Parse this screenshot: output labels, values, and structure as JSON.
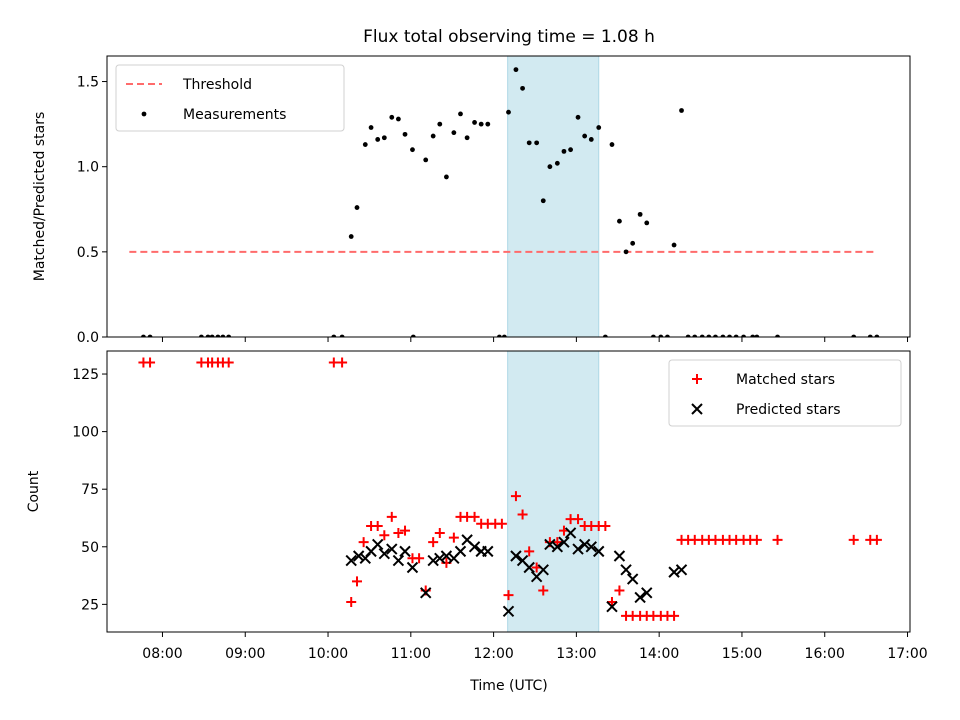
{
  "chart_data": {
    "type": "scatter",
    "title": "Flux total observing time = 1.08 h",
    "xlabel": "Time (UTC)",
    "x_ticks": [
      "08:00",
      "09:00",
      "10:00",
      "11:00",
      "12:00",
      "13:00",
      "14:00",
      "15:00",
      "16:00",
      "17:00"
    ],
    "xlim_hours": [
      7.33,
      17.03
    ],
    "shaded_interval_hours": [
      12.17,
      13.27
    ],
    "shade_color": "#add8e6",
    "panels": [
      {
        "ylabel": "Matched/Predicted stars",
        "ylim": [
          0,
          1.65
        ],
        "y_ticks": [
          0.0,
          0.5,
          1.0,
          1.5
        ],
        "y_tick_labels": [
          "0.0",
          "0.5",
          "1.0",
          "1.5"
        ],
        "legend_position": "upper left",
        "series": [
          {
            "name": "Threshold",
            "kind": "dashed-line",
            "color": "#ff6b6b",
            "x": [
              7.6,
              16.6
            ],
            "y": [
              0.5,
              0.5
            ]
          },
          {
            "name": "Measurements",
            "kind": "dot",
            "color": "#000000",
            "points": [
              [
                7.77,
                0.0
              ],
              [
                7.85,
                0.0
              ],
              [
                8.47,
                0.0
              ],
              [
                8.55,
                0.0
              ],
              [
                8.6,
                0.0
              ],
              [
                8.67,
                0.0
              ],
              [
                8.73,
                0.0
              ],
              [
                8.8,
                0.0
              ],
              [
                10.07,
                0.0
              ],
              [
                10.17,
                0.0
              ],
              [
                10.28,
                0.59
              ],
              [
                10.35,
                0.76
              ],
              [
                10.45,
                1.13
              ],
              [
                10.52,
                1.23
              ],
              [
                10.6,
                1.16
              ],
              [
                10.68,
                1.17
              ],
              [
                10.77,
                1.29
              ],
              [
                10.85,
                1.28
              ],
              [
                10.93,
                1.19
              ],
              [
                11.02,
                1.1
              ],
              [
                11.03,
                0.0
              ],
              [
                11.18,
                1.04
              ],
              [
                11.27,
                1.18
              ],
              [
                11.35,
                1.25
              ],
              [
                11.43,
                0.94
              ],
              [
                11.52,
                1.2
              ],
              [
                11.6,
                1.31
              ],
              [
                11.68,
                1.17
              ],
              [
                11.77,
                1.26
              ],
              [
                11.85,
                1.25
              ],
              [
                11.93,
                1.25
              ],
              [
                12.07,
                0.0
              ],
              [
                12.13,
                0.0
              ],
              [
                12.18,
                1.32
              ],
              [
                12.27,
                1.57
              ],
              [
                12.35,
                1.46
              ],
              [
                12.43,
                1.14
              ],
              [
                12.52,
                1.14
              ],
              [
                12.6,
                0.8
              ],
              [
                12.68,
                1.0
              ],
              [
                12.77,
                1.02
              ],
              [
                12.85,
                1.09
              ],
              [
                12.93,
                1.1
              ],
              [
                13.02,
                1.29
              ],
              [
                13.1,
                1.18
              ],
              [
                13.18,
                1.16
              ],
              [
                13.27,
                1.23
              ],
              [
                13.35,
                0.0
              ],
              [
                13.43,
                1.13
              ],
              [
                13.52,
                0.68
              ],
              [
                13.6,
                0.5
              ],
              [
                13.68,
                0.55
              ],
              [
                13.77,
                0.72
              ],
              [
                13.85,
                0.67
              ],
              [
                13.93,
                0.0
              ],
              [
                14.02,
                0.0
              ],
              [
                14.1,
                0.0
              ],
              [
                14.18,
                0.54
              ],
              [
                14.27,
                1.33
              ],
              [
                14.35,
                0.0
              ],
              [
                14.43,
                0.0
              ],
              [
                14.52,
                0.0
              ],
              [
                14.6,
                0.0
              ],
              [
                14.68,
                0.0
              ],
              [
                14.77,
                0.0
              ],
              [
                14.85,
                0.0
              ],
              [
                14.93,
                0.0
              ],
              [
                15.02,
                0.0
              ],
              [
                15.13,
                0.0
              ],
              [
                15.18,
                0.0
              ],
              [
                15.43,
                0.0
              ],
              [
                16.35,
                0.0
              ],
              [
                16.55,
                0.0
              ],
              [
                16.63,
                0.0
              ]
            ]
          }
        ]
      },
      {
        "ylabel": "Count",
        "ylim": [
          13,
          135
        ],
        "y_ticks": [
          25,
          50,
          75,
          100,
          125
        ],
        "y_tick_labels": [
          "25",
          "50",
          "75",
          "100",
          "125"
        ],
        "legend_position": "upper right",
        "series": [
          {
            "name": "Matched stars",
            "kind": "plus",
            "color": "#ff0000",
            "points": [
              [
                7.77,
                130
              ],
              [
                7.85,
                130
              ],
              [
                8.47,
                130
              ],
              [
                8.55,
                130
              ],
              [
                8.6,
                130
              ],
              [
                8.67,
                130
              ],
              [
                8.73,
                130
              ],
              [
                8.8,
                130
              ],
              [
                10.07,
                130
              ],
              [
                10.17,
                130
              ],
              [
                10.28,
                26
              ],
              [
                10.35,
                35
              ],
              [
                10.43,
                52
              ],
              [
                10.52,
                59
              ],
              [
                10.6,
                59
              ],
              [
                10.68,
                55
              ],
              [
                10.77,
                63
              ],
              [
                10.85,
                56
              ],
              [
                10.93,
                57
              ],
              [
                11.02,
                45
              ],
              [
                11.1,
                45
              ],
              [
                11.18,
                31
              ],
              [
                11.27,
                52
              ],
              [
                11.35,
                56
              ],
              [
                11.43,
                43
              ],
              [
                11.52,
                54
              ],
              [
                11.6,
                63
              ],
              [
                11.68,
                63
              ],
              [
                11.77,
                63
              ],
              [
                11.85,
                60
              ],
              [
                11.93,
                60
              ],
              [
                12.02,
                60
              ],
              [
                12.1,
                60
              ],
              [
                12.18,
                29
              ],
              [
                12.27,
                72
              ],
              [
                12.35,
                64
              ],
              [
                12.43,
                48
              ],
              [
                12.52,
                41
              ],
              [
                12.6,
                31
              ],
              [
                12.68,
                52
              ],
              [
                12.77,
                52
              ],
              [
                12.85,
                57
              ],
              [
                12.93,
                62
              ],
              [
                13.02,
                62
              ],
              [
                13.1,
                59
              ],
              [
                13.18,
                59
              ],
              [
                13.27,
                59
              ],
              [
                13.35,
                59
              ],
              [
                13.43,
                26
              ],
              [
                13.52,
                31
              ],
              [
                13.6,
                20
              ],
              [
                13.68,
                20
              ],
              [
                13.77,
                20
              ],
              [
                13.85,
                20
              ],
              [
                13.93,
                20
              ],
              [
                14.02,
                20
              ],
              [
                14.1,
                20
              ],
              [
                14.18,
                20
              ],
              [
                14.27,
                53
              ],
              [
                14.35,
                53
              ],
              [
                14.43,
                53
              ],
              [
                14.52,
                53
              ],
              [
                14.6,
                53
              ],
              [
                14.68,
                53
              ],
              [
                14.77,
                53
              ],
              [
                14.85,
                53
              ],
              [
                14.93,
                53
              ],
              [
                15.02,
                53
              ],
              [
                15.1,
                53
              ],
              [
                15.18,
                53
              ],
              [
                15.43,
                53
              ],
              [
                16.35,
                53
              ],
              [
                16.55,
                53
              ],
              [
                16.63,
                53
              ]
            ]
          },
          {
            "name": "Predicted stars",
            "kind": "x",
            "color": "#000000",
            "points": [
              [
                10.28,
                44
              ],
              [
                10.37,
                46
              ],
              [
                10.45,
                45
              ],
              [
                10.52,
                48
              ],
              [
                10.6,
                51
              ],
              [
                10.68,
                47
              ],
              [
                10.77,
                49
              ],
              [
                10.85,
                44
              ],
              [
                10.93,
                48
              ],
              [
                11.02,
                41
              ],
              [
                11.18,
                30
              ],
              [
                11.27,
                44
              ],
              [
                11.35,
                45
              ],
              [
                11.43,
                46
              ],
              [
                11.52,
                45
              ],
              [
                11.6,
                48
              ],
              [
                11.68,
                53
              ],
              [
                11.77,
                50
              ],
              [
                11.85,
                48
              ],
              [
                11.93,
                48
              ],
              [
                12.18,
                22
              ],
              [
                12.27,
                46
              ],
              [
                12.35,
                44
              ],
              [
                12.43,
                41
              ],
              [
                12.52,
                37
              ],
              [
                12.6,
                40
              ],
              [
                12.68,
                51
              ],
              [
                12.77,
                50
              ],
              [
                12.85,
                52
              ],
              [
                12.93,
                56
              ],
              [
                13.02,
                49
              ],
              [
                13.1,
                51
              ],
              [
                13.18,
                50
              ],
              [
                13.27,
                48
              ],
              [
                13.43,
                24
              ],
              [
                13.52,
                46
              ],
              [
                13.6,
                40
              ],
              [
                13.68,
                36
              ],
              [
                13.77,
                28
              ],
              [
                13.85,
                30
              ],
              [
                14.18,
                39
              ],
              [
                14.27,
                40
              ]
            ]
          }
        ]
      }
    ]
  }
}
